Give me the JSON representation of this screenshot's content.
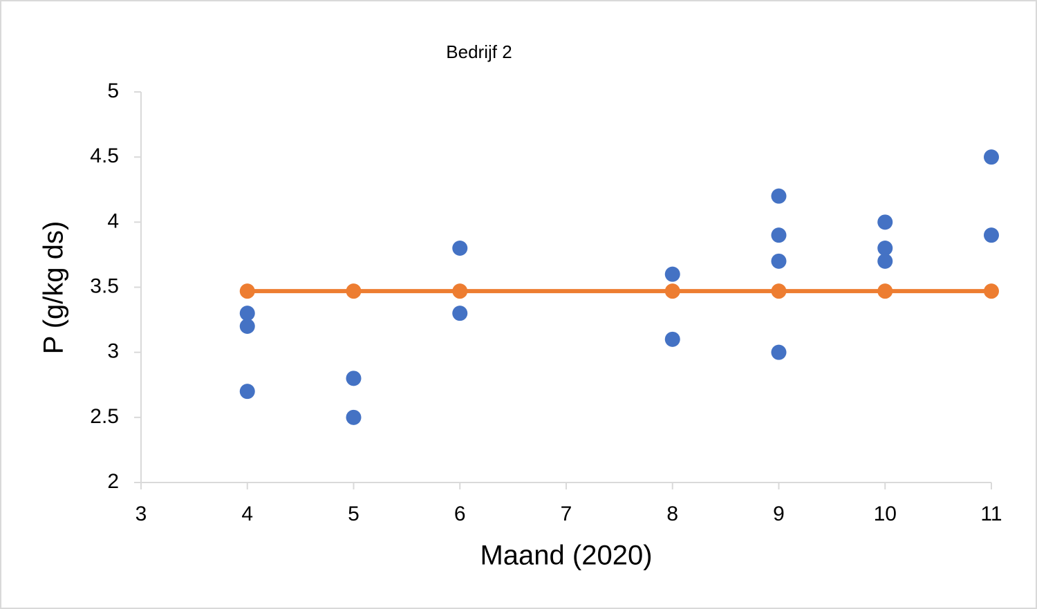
{
  "chart_data": {
    "type": "scatter",
    "title": "Bedrijf 2",
    "x_label": "Maand (2020)",
    "y_label": "P (g/kg ds)",
    "series": [
      {
        "color": "#4472c4",
        "line": false,
        "x": [
          4,
          4,
          4,
          5,
          5,
          6,
          6,
          8,
          8,
          9,
          9,
          9,
          9,
          10,
          10,
          10,
          11,
          11
        ],
        "values": [
          3.3,
          3.2,
          2.7,
          2.8,
          2.5,
          3.8,
          3.3,
          3.6,
          3.1,
          4.2,
          3.9,
          3.7,
          3.0,
          4.0,
          3.8,
          3.7,
          4.5,
          3.9
        ]
      },
      {
        "color": "#ed7d31",
        "line": true,
        "x": [
          4,
          5,
          6,
          8,
          9,
          10,
          11
        ],
        "values": [
          3.47,
          3.47,
          3.47,
          3.47,
          3.47,
          3.47,
          3.47
        ]
      }
    ],
    "xlim": [
      3,
      11
    ],
    "xticks": [
      3,
      4,
      5,
      6,
      7,
      8,
      9,
      10,
      11
    ],
    "ylim": [
      2,
      5
    ],
    "yticks": [
      2,
      2.5,
      3,
      3.5,
      4,
      4.5,
      5
    ],
    "grid": false
  }
}
